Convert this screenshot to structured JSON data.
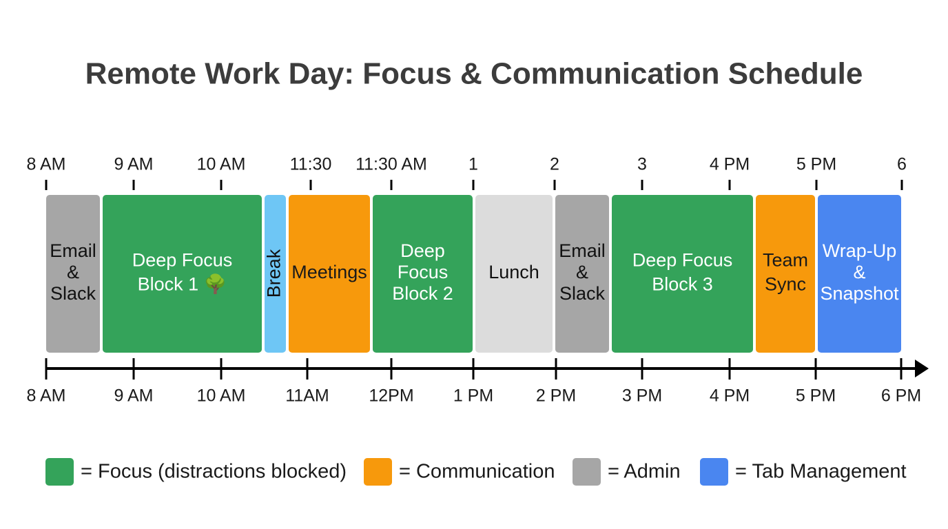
{
  "title": "Remote Work Day: Focus & Communication Schedule",
  "top_labels": [
    "8 AM",
    "9 AM",
    "10 AM",
    "11:30",
    "11:30 AM",
    "1",
    "2",
    "3",
    "4 PM",
    "5 PM",
    "6"
  ],
  "blocks": [
    {
      "lines": [
        "Email",
        "&",
        "Slack"
      ]
    },
    {
      "lines": [
        "Deep Focus",
        "Block 1 🌳"
      ]
    },
    {
      "lines": [
        "Break"
      ]
    },
    {
      "lines": [
        "Meetings"
      ]
    },
    {
      "lines": [
        "Deep",
        "Focus",
        "Block 2"
      ]
    },
    {
      "lines": [
        "Lunch"
      ]
    },
    {
      "lines": [
        "Email",
        "&",
        "Slack"
      ]
    },
    {
      "lines": [
        "Deep Focus",
        "Block 3"
      ]
    },
    {
      "lines": [
        "Team",
        "Sync"
      ]
    },
    {
      "lines": [
        "Wrap-Up",
        "&",
        "Snapshot"
      ]
    }
  ],
  "bottom_labels": [
    "8 AM",
    "9 AM",
    "10 AM",
    "11AM",
    "12PM",
    "1 PM",
    "2 PM",
    "3 PM",
    "4 PM",
    "5 PM",
    "6 PM"
  ],
  "legend": [
    "= Focus (distractions blocked)",
    "= Communication",
    "= Admin",
    "= Tab Management"
  ]
}
